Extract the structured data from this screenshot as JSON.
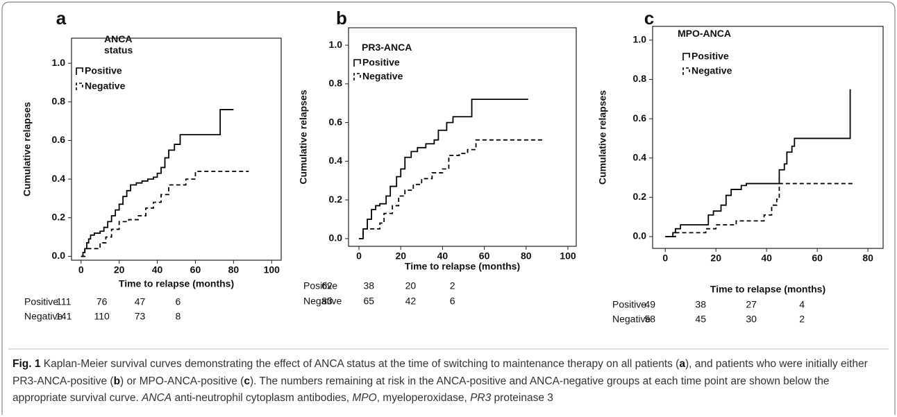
{
  "chart_data": [
    {
      "type": "step",
      "panel_label": "a",
      "legend_title": "ANCA\nstatus",
      "xlabel": "Time to relapse (months)",
      "ylabel": "Cumulative relapses",
      "xlim": [
        -5,
        105
      ],
      "xticks": [
        0,
        20,
        40,
        60,
        80,
        100
      ],
      "ylim": [
        -0.02,
        1.13
      ],
      "yticks": [
        {
          "value": 0,
          "label": "0.0"
        },
        0.2,
        0.4,
        0.6,
        0.8,
        {
          "value": 1,
          "label": "1.0"
        }
      ],
      "series": [
        {
          "name": "Positive",
          "color": "#000000",
          "linestyle": "solid",
          "x": [
            0,
            1,
            2,
            3,
            4,
            5,
            7,
            10,
            12,
            14,
            16,
            18,
            20,
            22,
            24,
            26,
            29,
            32,
            35,
            38,
            40,
            42,
            44,
            46,
            49,
            52,
            73,
            80
          ],
          "values": [
            0,
            0.02,
            0.04,
            0.07,
            0.09,
            0.11,
            0.12,
            0.13,
            0.15,
            0.18,
            0.21,
            0.24,
            0.27,
            0.31,
            0.34,
            0.37,
            0.38,
            0.39,
            0.4,
            0.41,
            0.43,
            0.46,
            0.51,
            0.55,
            0.58,
            0.63,
            0.76,
            0.76
          ]
        },
        {
          "name": "Negative",
          "color": "#000000",
          "linestyle": "dashed",
          "x": [
            0,
            2,
            8,
            10,
            13,
            16,
            20,
            25,
            30,
            34,
            38,
            42,
            46,
            52,
            55,
            60,
            88
          ],
          "values": [
            0,
            0.04,
            0.04,
            0.07,
            0.1,
            0.14,
            0.18,
            0.19,
            0.21,
            0.25,
            0.28,
            0.32,
            0.37,
            0.37,
            0.4,
            0.44,
            0.44
          ]
        }
      ],
      "risk_table": [
        {
          "name": "Positive",
          "values": [
            111,
            76,
            47,
            6
          ]
        },
        {
          "name": "Negative",
          "values": [
            141,
            110,
            73,
            8
          ]
        }
      ]
    },
    {
      "type": "step",
      "panel_label": "b",
      "legend_title": "PR3-ANCA",
      "xlabel": "Time to relapse (months)",
      "ylabel": "Cumulative relapses",
      "xlim": [
        -5,
        104
      ],
      "xticks": [
        0,
        20,
        40,
        60,
        80,
        100
      ],
      "ylim": [
        -0.04,
        1.09
      ],
      "yticks": [
        {
          "value": 0,
          "label": "0.0"
        },
        0.2,
        0.4,
        0.6,
        0.8,
        {
          "value": 1,
          "label": "1.0"
        }
      ],
      "series": [
        {
          "name": "Positive",
          "color": "#000000",
          "linestyle": "solid",
          "x": [
            0,
            2,
            4,
            6,
            8,
            10,
            13,
            15,
            18,
            20,
            22,
            25,
            28,
            32,
            36,
            38,
            42,
            45,
            54,
            81
          ],
          "values": [
            0,
            0.05,
            0.1,
            0.15,
            0.17,
            0.18,
            0.22,
            0.27,
            0.32,
            0.36,
            0.42,
            0.45,
            0.47,
            0.49,
            0.51,
            0.56,
            0.6,
            0.63,
            0.72,
            0.72
          ]
        },
        {
          "name": "Negative",
          "color": "#000000",
          "linestyle": "dashed",
          "x": [
            0,
            2,
            10,
            12,
            16,
            19,
            22,
            26,
            30,
            35,
            40,
            43,
            48,
            52,
            56,
            89
          ],
          "values": [
            0,
            0.05,
            0.08,
            0.13,
            0.17,
            0.22,
            0.25,
            0.28,
            0.31,
            0.34,
            0.36,
            0.43,
            0.44,
            0.46,
            0.51,
            0.51
          ]
        }
      ],
      "risk_table": [
        {
          "name": "Positive",
          "values": [
            62,
            38,
            20,
            2
          ]
        },
        {
          "name": "Negative",
          "values": [
            83,
            65,
            42,
            6
          ]
        }
      ]
    },
    {
      "type": "step",
      "panel_label": "c",
      "legend_title": "MPO-ANCA",
      "xlabel": "Time to relapse (months)",
      "ylabel": "Cumulative relapses",
      "xlim": [
        -5,
        86
      ],
      "xticks": [
        0,
        20,
        40,
        60,
        80
      ],
      "ylim": [
        -0.06,
        1.07
      ],
      "yticks": [
        {
          "value": 0,
          "label": "0.0"
        },
        0.2,
        0.4,
        0.6,
        0.8,
        {
          "value": 1,
          "label": "1.0"
        }
      ],
      "series": [
        {
          "name": "Positive",
          "color": "#000000",
          "linestyle": "solid",
          "x": [
            0,
            3,
            4,
            6,
            17,
            19,
            22,
            24,
            26,
            30,
            32,
            45,
            47,
            48,
            50,
            51,
            73
          ],
          "values": [
            0,
            0.02,
            0.04,
            0.06,
            0.11,
            0.13,
            0.16,
            0.21,
            0.24,
            0.26,
            0.27,
            0.34,
            0.37,
            0.43,
            0.46,
            0.5,
            0.75
          ]
        },
        {
          "name": "Negative",
          "color": "#000000",
          "linestyle": "dashed",
          "x": [
            0,
            4,
            13,
            16,
            20,
            28,
            39,
            42,
            44,
            45,
            74
          ],
          "values": [
            0,
            0.02,
            0.02,
            0.04,
            0.06,
            0.08,
            0.11,
            0.16,
            0.19,
            0.27,
            0.27
          ]
        }
      ],
      "risk_table": [
        {
          "name": "Positive",
          "values": [
            49,
            38,
            27,
            4
          ]
        },
        {
          "name": "Negative",
          "values": [
            58,
            45,
            30,
            2
          ]
        }
      ]
    }
  ],
  "caption": [
    "Fig. 1",
    " Kaplan-Meier survival curves demonstrating the effect of ANCA status at the time of switching to maintenance therapy on all patients (",
    "a",
    "), and patients who were initially either PR3-ANCA-positive (",
    "b",
    ") or MPO-ANCA-positive (",
    "c",
    "). The numbers remaining at risk in the ANCA-positive and ANCA-negative groups at each time point are shown below the appropriate survival curve. ",
    "ANCA",
    " anti-neutrophil cytoplasm antibodies, ",
    "MPO",
    ", myeloperoxidase, ",
    "PR3",
    " proteinase 3"
  ]
}
